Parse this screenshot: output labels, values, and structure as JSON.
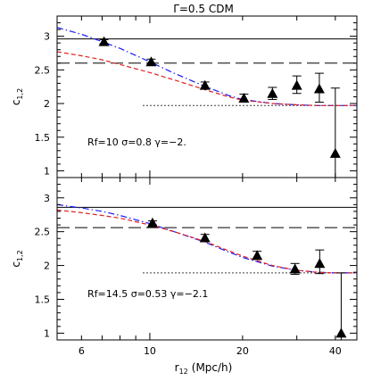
{
  "chart_data": [
    {
      "type": "line",
      "title": "Γ=0.5 CDM",
      "ylabel": "c",
      "ylabel_sub": "1,2",
      "xlabel": "",
      "xscale": "log",
      "xlim": [
        5,
        47
      ],
      "ylim": [
        0.9,
        3.3
      ],
      "yticks": [
        1,
        1.5,
        2,
        2.5,
        3
      ],
      "ytick_labels": [
        "1",
        "1.5",
        "2",
        "2.5",
        "3"
      ],
      "annotation": "Rf=10   σ=0.8   γ=−2.",
      "reference_lines": [
        {
          "style": "solid",
          "y": 2.96
        },
        {
          "style": "long-dash",
          "y": 2.6
        },
        {
          "style": "dotted",
          "y": 1.97,
          "x_start": 9.5
        }
      ],
      "series": [
        {
          "style": "dot-dash",
          "color": "#1a1aff",
          "x": [
            5,
            6,
            7,
            8,
            10,
            12,
            15,
            18,
            20,
            25,
            30,
            35,
            40,
            47
          ],
          "y": [
            3.13,
            3.03,
            2.92,
            2.82,
            2.62,
            2.45,
            2.26,
            2.12,
            2.06,
            2.0,
            1.98,
            1.97,
            1.97,
            1.97
          ]
        },
        {
          "style": "dash",
          "color": "#e02020",
          "x": [
            5,
            6,
            7,
            8,
            10,
            12,
            15,
            18,
            20,
            25,
            30,
            35,
            40,
            47
          ],
          "y": [
            2.77,
            2.71,
            2.65,
            2.58,
            2.46,
            2.35,
            2.21,
            2.1,
            2.05,
            2.0,
            1.98,
            1.97,
            1.97,
            1.97
          ]
        },
        {
          "style": "points-errorbars",
          "marker": "triangle",
          "x": [
            7.1,
            10.1,
            15.1,
            20.2,
            25,
            30,
            35.5,
            40
          ],
          "y": [
            2.92,
            2.62,
            2.27,
            2.08,
            2.15,
            2.27,
            2.22,
            1.26
          ],
          "yerr_low": [
            0.03,
            0.04,
            0.05,
            0.06,
            0.09,
            0.12,
            0.2,
            2.0
          ],
          "yerr_high": [
            0.03,
            0.04,
            0.05,
            0.06,
            0.09,
            0.14,
            0.23,
            0.97
          ]
        }
      ]
    },
    {
      "type": "line",
      "ylabel": "c",
      "ylabel_sub": "1,2",
      "xlabel": "r",
      "xlabel_sub": "12",
      "xlabel_unit": "(Mpc/h)",
      "xscale": "log",
      "xlim": [
        5,
        47
      ],
      "ylim": [
        0.9,
        3.3
      ],
      "xticks": [
        6,
        10,
        20,
        40
      ],
      "xtick_labels": [
        "6",
        "10",
        "20",
        "40"
      ],
      "yticks": [
        1,
        1.5,
        2,
        2.5,
        3
      ],
      "ytick_labels": [
        "1",
        "1.5",
        "2",
        "2.5",
        "3"
      ],
      "annotation": "Rf=14.5   σ=0.53   γ=−2.1",
      "reference_lines": [
        {
          "style": "solid",
          "y": 2.86
        },
        {
          "style": "long-dash",
          "y": 2.56
        },
        {
          "style": "dotted",
          "y": 1.89,
          "x_start": 9.5
        }
      ],
      "series": [
        {
          "style": "dot-dash",
          "color": "#1a1aff",
          "x": [
            5,
            6,
            7,
            8,
            10,
            12,
            15,
            18,
            20,
            25,
            30,
            35,
            40,
            47
          ],
          "y": [
            2.9,
            2.85,
            2.8,
            2.74,
            2.62,
            2.5,
            2.35,
            2.2,
            2.12,
            1.99,
            1.93,
            1.9,
            1.89,
            1.89
          ]
        },
        {
          "style": "dash",
          "color": "#e02020",
          "x": [
            5,
            6,
            7,
            8,
            10,
            12,
            15,
            18,
            20,
            25,
            30,
            35,
            40,
            47
          ],
          "y": [
            2.82,
            2.78,
            2.74,
            2.7,
            2.6,
            2.5,
            2.36,
            2.22,
            2.14,
            2.0,
            1.93,
            1.9,
            1.89,
            1.89
          ]
        },
        {
          "style": "points-errorbars",
          "marker": "triangle",
          "x": [
            10.2,
            15.1,
            22.3,
            29.6,
            35.6,
            41.8
          ],
          "y": [
            2.63,
            2.41,
            2.15,
            1.95,
            2.03,
            1.0
          ],
          "yerr_low": [
            0.03,
            0.05,
            0.06,
            0.08,
            0.15,
            0.1
          ],
          "yerr_high": [
            0.03,
            0.05,
            0.06,
            0.08,
            0.2,
            0.89
          ]
        }
      ]
    }
  ]
}
